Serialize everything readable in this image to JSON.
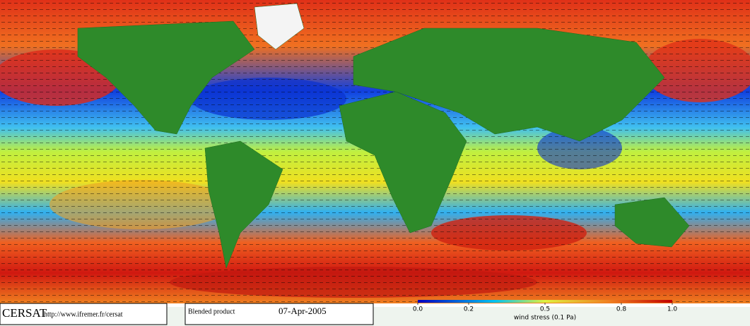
{
  "footer": {
    "logo": "CERSAT",
    "url": "http://www.ifremer.fr/cersat",
    "product": "Blended product",
    "date": "07-Apr-2005"
  },
  "colorbar": {
    "title": "wind stress (0.1 Pa)",
    "lim": [
      0,
      1
    ],
    "ticks": [
      {
        "value": 0,
        "label": "0.0"
      },
      0.2,
      0.5,
      0.8,
      {
        "value": 1,
        "label": "1.0"
      }
    ]
  }
}
